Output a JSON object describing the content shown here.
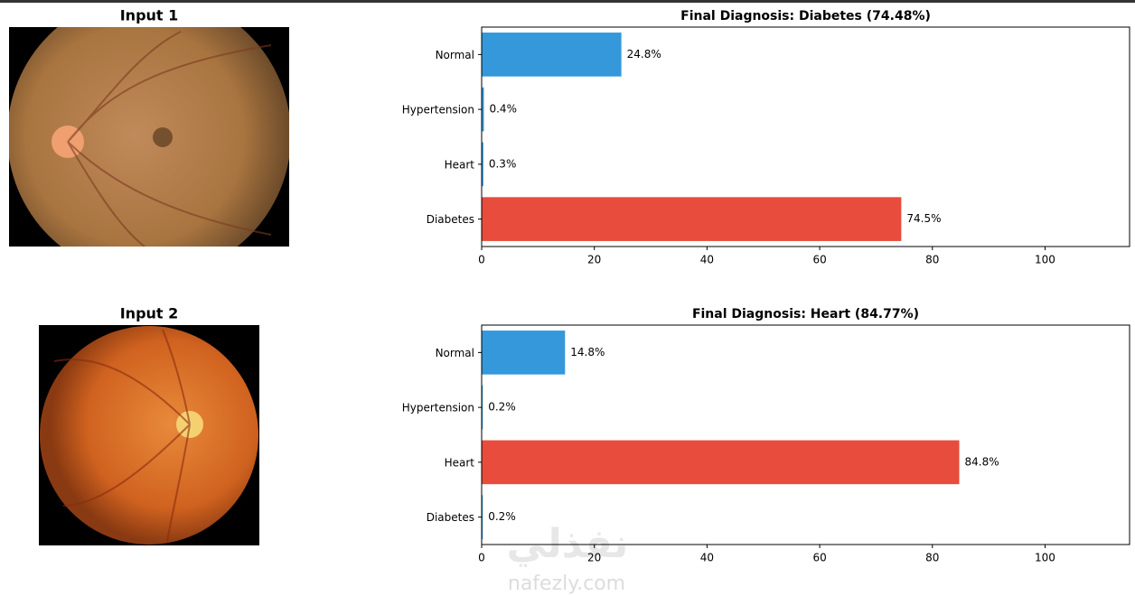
{
  "images": [
    {
      "title": "Input 1"
    },
    {
      "title": "Input 2"
    }
  ],
  "watermark": {
    "logo": "نفذلي",
    "site": "nafezly.com"
  },
  "chart_data": [
    {
      "type": "bar",
      "orientation": "horizontal",
      "title": "Final Diagnosis: Diabetes (74.48%)",
      "categories": [
        "Normal",
        "Hypertension",
        "Heart",
        "Diabetes"
      ],
      "values": [
        24.8,
        0.4,
        0.3,
        74.48
      ],
      "value_labels": [
        "24.8%",
        "0.4%",
        "0.3%",
        "74.5%"
      ],
      "colors": [
        "#3498db",
        "#3498db",
        "#3498db",
        "#e74c3c"
      ],
      "xlim": [
        0,
        115
      ],
      "xticks": [
        0,
        20,
        40,
        60,
        80,
        100
      ]
    },
    {
      "type": "bar",
      "orientation": "horizontal",
      "title": "Final Diagnosis: Heart (84.77%)",
      "categories": [
        "Normal",
        "Hypertension",
        "Heart",
        "Diabetes"
      ],
      "values": [
        14.8,
        0.2,
        84.77,
        0.2
      ],
      "value_labels": [
        "14.8%",
        "0.2%",
        "84.8%",
        "0.2%"
      ],
      "colors": [
        "#3498db",
        "#3498db",
        "#e74c3c",
        "#3498db"
      ],
      "xlim": [
        0,
        115
      ],
      "xticks": [
        0,
        20,
        40,
        60,
        80,
        100
      ]
    }
  ]
}
